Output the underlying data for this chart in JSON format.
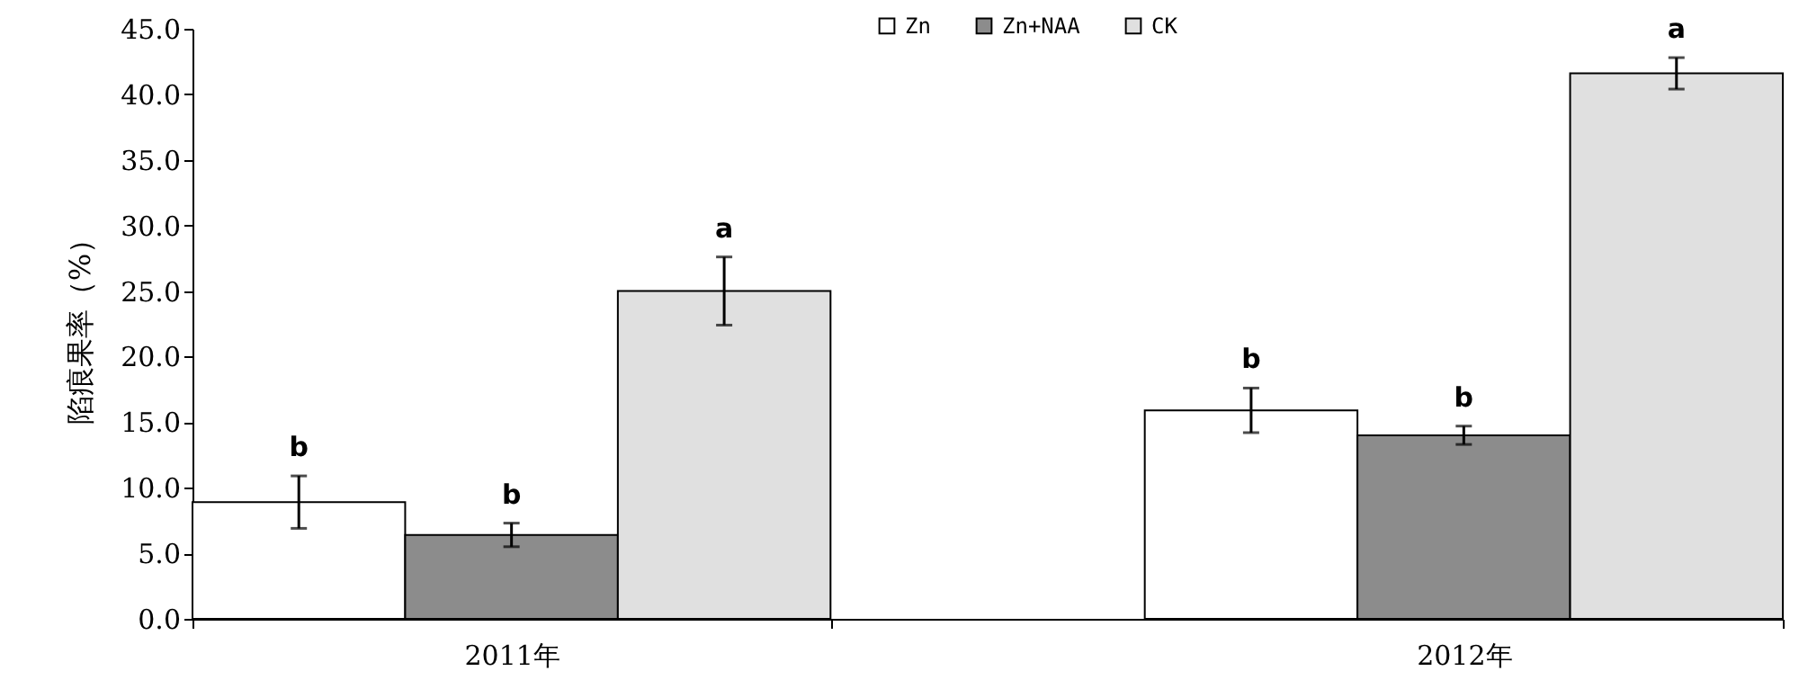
{
  "chart_data": {
    "type": "bar",
    "ylabel": "陷痕果率（%）",
    "categories": [
      "2011年",
      "2012年"
    ],
    "series": [
      {
        "name": "Zn",
        "color": "#ffffff",
        "values": [
          8.9,
          15.9
        ],
        "errors": [
          2.0,
          1.7
        ],
        "value_labels": [
          "b",
          "b"
        ]
      },
      {
        "name": "Zn+NAA",
        "color": "#8c8c8c",
        "values": [
          6.4,
          14.0
        ],
        "errors": [
          0.9,
          0.7
        ],
        "value_labels": [
          "b",
          "b"
        ]
      },
      {
        "name": "CK",
        "color": "#e0e0e0",
        "values": [
          25.0,
          41.6
        ],
        "errors": [
          2.6,
          1.2
        ],
        "value_labels": [
          "a",
          "a"
        ]
      }
    ],
    "ylim": [
      0,
      45
    ],
    "yticks": [
      {
        "value": 0,
        "label": "0.0"
      },
      {
        "value": 5,
        "label": "5.0"
      },
      {
        "value": 10,
        "label": "10.0"
      },
      {
        "value": 15,
        "label": "15.0"
      },
      {
        "value": 20,
        "label": "20.0"
      },
      {
        "value": 25,
        "label": "25.0"
      },
      {
        "value": 30,
        "label": "30.0"
      },
      {
        "value": 35,
        "label": "35.0"
      },
      {
        "value": 40,
        "label": "40.0"
      },
      {
        "value": 45,
        "label": "45.0"
      }
    ],
    "grid": false,
    "legend": "top"
  }
}
